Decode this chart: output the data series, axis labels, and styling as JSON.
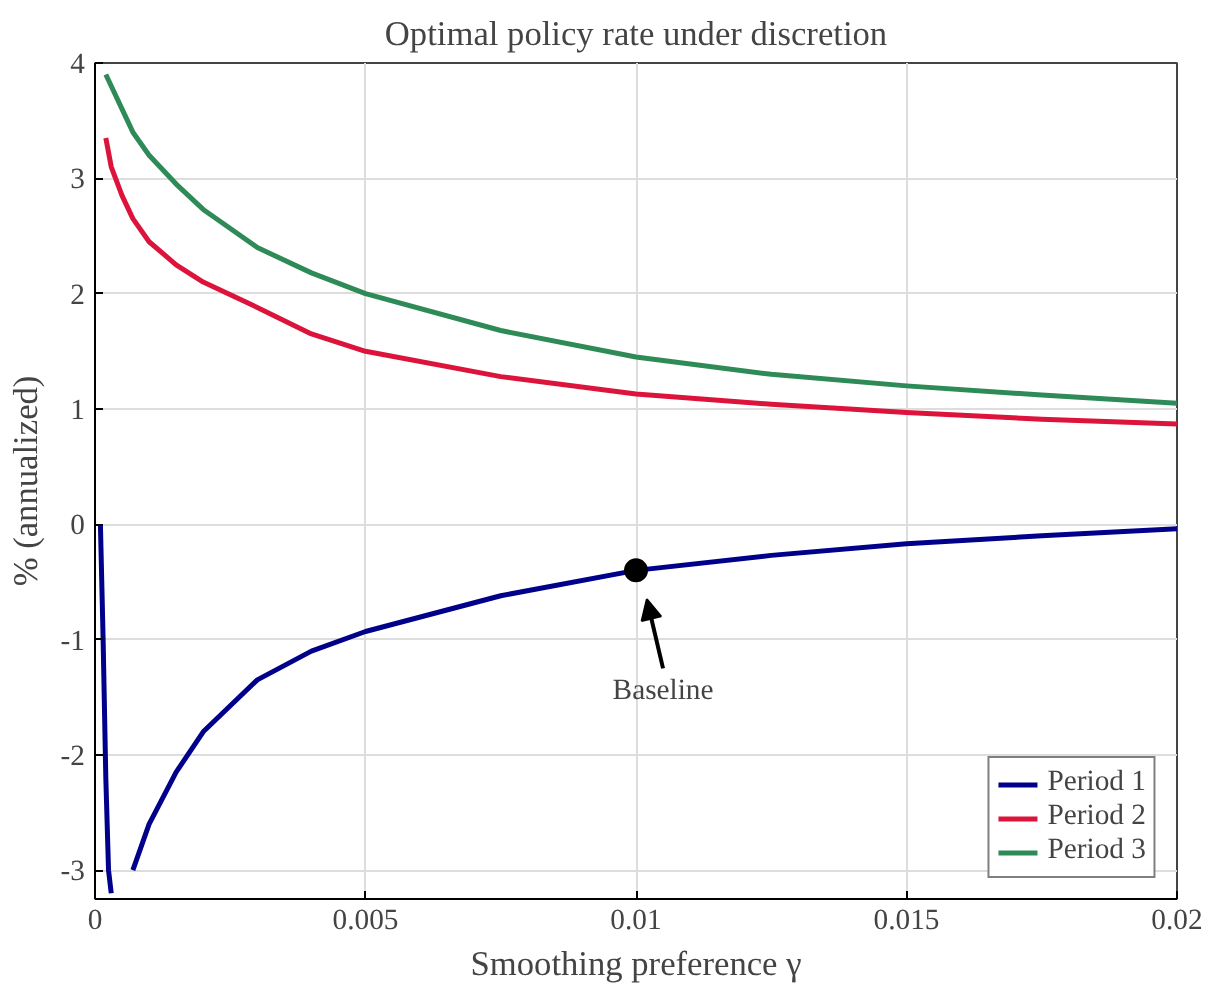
{
  "chart_data": {
    "type": "line",
    "title": "Optimal policy rate under discretion",
    "xlabel": "Smoothing preference γ",
    "ylabel": "% (annualized)",
    "xlim": [
      0,
      0.02
    ],
    "ylim": [
      -3.25,
      4
    ],
    "xticks": [
      0,
      0.005,
      0.01,
      0.015,
      0.02
    ],
    "yticks": [
      -3,
      -2,
      -1,
      0,
      1,
      2,
      3,
      4
    ],
    "grid": true,
    "legend": "bottom right",
    "line_style": "solid",
    "series": [
      {
        "name": "Period 1",
        "color": "#00008b",
        "x": [
          0.0001,
          0.00015,
          0.0002,
          0.00025,
          0.0003,
          0.0004,
          0.0005,
          0.0007,
          0.001,
          0.0015,
          0.002,
          0.003,
          0.004,
          0.005,
          0.0075,
          0.01,
          0.0125,
          0.015,
          0.0175,
          0.02
        ],
        "values": [
          0,
          -1,
          -2.2,
          -3,
          -3.2,
          null,
          null,
          -3.0,
          -2.6,
          -2.15,
          -1.8,
          -1.35,
          -1.1,
          -0.93,
          -0.62,
          -0.4,
          -0.27,
          -0.17,
          -0.1,
          -0.04
        ]
      },
      {
        "name": "Period 2",
        "color": "#dc143c",
        "x": [
          0.0002,
          0.0003,
          0.0005,
          0.0007,
          0.001,
          0.0015,
          0.002,
          0.003,
          0.004,
          0.005,
          0.0075,
          0.01,
          0.0125,
          0.015,
          0.0175,
          0.02
        ],
        "values": [
          3.35,
          3.1,
          2.85,
          2.65,
          2.45,
          2.25,
          2.1,
          1.88,
          1.65,
          1.5,
          1.28,
          1.13,
          1.04,
          0.97,
          0.91,
          0.87
        ]
      },
      {
        "name": "Period 3",
        "color": "#2e8b57",
        "x": [
          0.0002,
          0.0003,
          0.0005,
          0.0007,
          0.001,
          0.0015,
          0.002,
          0.003,
          0.004,
          0.005,
          0.0075,
          0.01,
          0.0125,
          0.015,
          0.0175,
          0.02
        ],
        "values": [
          3.9,
          3.8,
          3.6,
          3.4,
          3.2,
          2.95,
          2.73,
          2.4,
          2.18,
          2.0,
          1.68,
          1.45,
          1.3,
          1.2,
          1.12,
          1.05
        ]
      },
      {
        "type": "scatter",
        "color": "#000000",
        "marker": "circle",
        "x": [
          0.01
        ],
        "values": [
          -0.4
        ]
      }
    ],
    "annotations": [
      "Baseline"
    ]
  }
}
